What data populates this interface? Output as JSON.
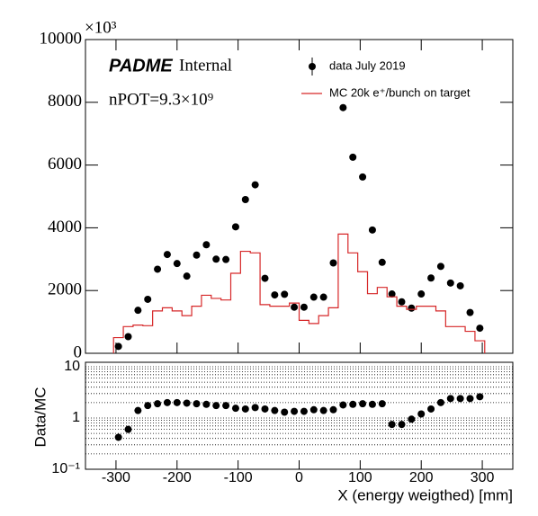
{
  "chart_data": [
    {
      "type": "histogram",
      "annotations": {
        "experiment": "PADME",
        "status": "Internal",
        "npot": "nPOT=9.3×10⁹"
      },
      "y_multiplier": "×10³",
      "bins": [
        -304,
        -288,
        -272,
        -256,
        -240,
        -224,
        -208,
        -192,
        -176,
        -160,
        -144,
        -128,
        -112,
        -96,
        -80,
        -64,
        -48,
        -32,
        -16,
        0,
        16,
        32,
        48,
        64,
        80,
        96,
        112,
        128,
        144,
        160,
        176,
        192,
        208,
        224,
        240,
        256,
        272,
        288,
        304
      ],
      "series": [
        {
          "name": "data July 2019",
          "color": "#000000",
          "style": "points",
          "values": [
            220,
            530,
            1370,
            1720,
            2680,
            3150,
            2860,
            2460,
            3130,
            3460,
            3000,
            2990,
            4030,
            4900,
            5370,
            2390,
            1860,
            1880,
            1470,
            1470,
            1790,
            1790,
            2880,
            7830,
            6250,
            5620,
            3930,
            2900,
            1890,
            1640,
            1440,
            1890,
            2400,
            2770,
            2240,
            2150,
            1300,
            800
          ]
        },
        {
          "name": "MC 20k e⁺/bunch on target",
          "color": "#d62728",
          "style": "step",
          "values": [
            500,
            850,
            900,
            880,
            1350,
            1450,
            1350,
            1200,
            1500,
            1850,
            1750,
            1700,
            2550,
            3250,
            3200,
            1550,
            1500,
            1500,
            1600,
            1050,
            950,
            1200,
            1450,
            3800,
            3200,
            2600,
            1900,
            2100,
            1800,
            1500,
            1400,
            1500,
            1500,
            1350,
            850,
            850,
            700,
            400
          ]
        }
      ],
      "xlim": [
        -350,
        350
      ],
      "ylim": [
        0,
        10000
      ],
      "yticks": [
        0,
        2000,
        4000,
        6000,
        8000,
        10000
      ],
      "legend": "top-right"
    },
    {
      "type": "scatter",
      "ylabel": "Data/MC",
      "xlabel": "X (energy weigthed) [mm]",
      "color": "#000000",
      "x": [
        -296,
        -280,
        -264,
        -248,
        -232,
        -216,
        -200,
        -184,
        -168,
        -152,
        -136,
        -120,
        -104,
        -88,
        -72,
        -56,
        -40,
        -24,
        -8,
        8,
        24,
        40,
        56,
        72,
        88,
        104,
        120,
        136,
        152,
        168,
        184,
        200,
        216,
        232,
        248,
        264,
        280,
        296
      ],
      "values": [
        0.42,
        0.6,
        1.4,
        1.75,
        1.9,
        2.0,
        2.0,
        1.95,
        1.9,
        1.85,
        1.75,
        1.75,
        1.55,
        1.5,
        1.6,
        1.5,
        1.4,
        1.3,
        1.35,
        1.35,
        1.45,
        1.4,
        1.45,
        1.8,
        1.85,
        1.9,
        1.85,
        1.9,
        0.75,
        0.75,
        0.95,
        1.2,
        1.5,
        2.0,
        2.4,
        2.4,
        2.4,
        2.6
      ],
      "xlim": [
        -350,
        350
      ],
      "xticks": [
        -300,
        -200,
        -100,
        0,
        100,
        200,
        300
      ],
      "ylim": [
        0.1,
        10
      ],
      "log_y": true,
      "yticks": [
        {
          "value": 0.1,
          "label": "10⁻¹"
        },
        1,
        10
      ],
      "grid_lines": [
        0.2,
        0.3,
        0.4,
        0.5,
        0.6,
        0.7,
        0.8,
        0.9,
        2,
        3,
        4,
        5,
        6,
        7,
        8,
        9
      ]
    }
  ]
}
